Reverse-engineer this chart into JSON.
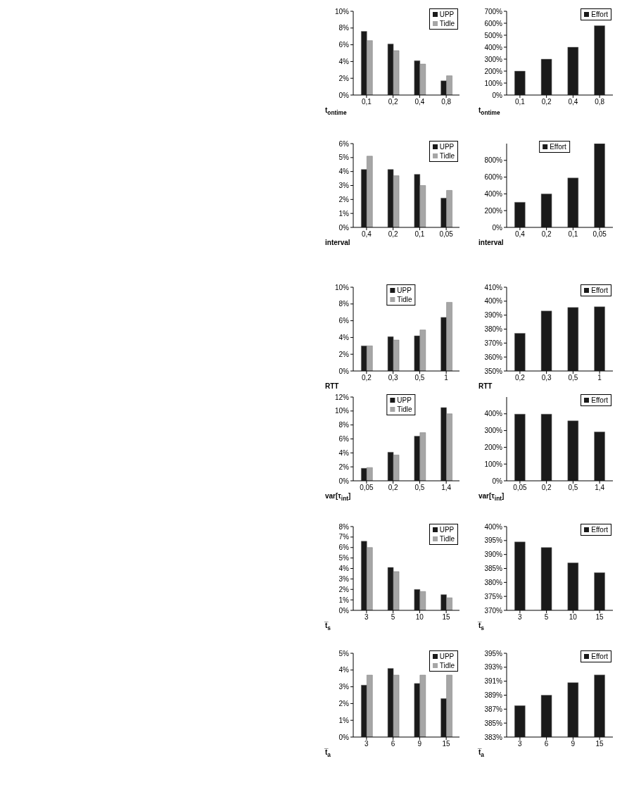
{
  "chart_data": [
    {
      "type": "bar",
      "categories": [
        "0,1",
        "0,2",
        "0,4",
        "0,8"
      ],
      "xlabel": "t$_{ontime}$",
      "legend": "top right",
      "ylim": [
        0,
        10
      ],
      "yticks": [
        {
          "value": 0,
          "label": "0%"
        },
        {
          "value": 2,
          "label": "2%"
        },
        {
          "value": 4,
          "label": "4%"
        },
        {
          "value": 6,
          "label": "6%"
        },
        {
          "value": 8,
          "label": "8%"
        },
        {
          "value": 10,
          "label": "10%"
        }
      ],
      "series": [
        {
          "name": "UPP",
          "color": "#1a1a1a",
          "values": [
            7.6,
            6.1,
            4.1,
            1.7
          ]
        },
        {
          "name": "Tidle",
          "color": "#a6a6a6",
          "values": [
            6.5,
            5.3,
            3.7,
            2.3
          ]
        }
      ]
    },
    {
      "type": "bar",
      "categories": [
        "0,1",
        "0,2",
        "0,4",
        "0,8"
      ],
      "xlabel": "t$_{ontime}$",
      "legend": "top right",
      "ylim": [
        0,
        700
      ],
      "yticks": [
        {
          "value": 0,
          "label": "0%"
        },
        {
          "value": 100,
          "label": "100%"
        },
        {
          "value": 200,
          "label": "200%"
        },
        {
          "value": 300,
          "label": "300%"
        },
        {
          "value": 400,
          "label": "400%"
        },
        {
          "value": 500,
          "label": "500%"
        },
        {
          "value": 600,
          "label": "600%"
        },
        {
          "value": 700,
          "label": "700%"
        }
      ],
      "series": [
        {
          "name": "Effort",
          "color": "#1a1a1a",
          "values": [
            200,
            300,
            400,
            580
          ]
        }
      ]
    },
    {
      "type": "bar",
      "categories": [
        "0,4",
        "0,2",
        "0,1",
        "0,05"
      ],
      "xlabel": "interval",
      "legend": "top right",
      "ylim": [
        0,
        6
      ],
      "yticks": [
        {
          "value": 0,
          "label": "0%"
        },
        {
          "value": 1,
          "label": "1%"
        },
        {
          "value": 2,
          "label": "2%"
        },
        {
          "value": 3,
          "label": "3%"
        },
        {
          "value": 4,
          "label": "4%"
        },
        {
          "value": 5,
          "label": "5%"
        },
        {
          "value": 6,
          "label": "6%"
        }
      ],
      "series": [
        {
          "name": "UPP",
          "color": "#1a1a1a",
          "values": [
            4.15,
            4.15,
            3.8,
            2.1
          ]
        },
        {
          "name": "Tidle",
          "color": "#a6a6a6",
          "values": [
            5.1,
            3.7,
            3.0,
            2.65
          ]
        }
      ]
    },
    {
      "type": "bar",
      "categories": [
        "0,4",
        "0,2",
        "0,1",
        "0,05"
      ],
      "xlabel": "interval",
      "legend": "top",
      "ylim": [
        0,
        1000
      ],
      "yticks": [
        {
          "value": 0,
          "label": "0%"
        },
        {
          "value": 200,
          "label": "200%"
        },
        {
          "value": 400,
          "label": "400%"
        },
        {
          "value": 600,
          "label": "600%"
        },
        {
          "value": 800,
          "label": "800%"
        }
      ],
      "series": [
        {
          "name": "Effort",
          "color": "#1a1a1a",
          "values": [
            300,
            400,
            590,
            1000
          ]
        }
      ]
    },
    {
      "type": "bar",
      "categories": [
        "0,2",
        "0,3",
        "0,5",
        "1"
      ],
      "xlabel": "RTT",
      "legend": "top",
      "ylim": [
        0,
        10
      ],
      "yticks": [
        {
          "value": 0,
          "label": "0%"
        },
        {
          "value": 2,
          "label": "2%"
        },
        {
          "value": 4,
          "label": "4%"
        },
        {
          "value": 6,
          "label": "6%"
        },
        {
          "value": 8,
          "label": "8%"
        },
        {
          "value": 10,
          "label": "10%"
        }
      ],
      "series": [
        {
          "name": "UPP",
          "color": "#1a1a1a",
          "values": [
            3.0,
            4.1,
            4.2,
            6.4
          ]
        },
        {
          "name": "Tidle",
          "color": "#a6a6a6",
          "values": [
            3.0,
            3.7,
            4.9,
            8.2
          ]
        }
      ]
    },
    {
      "type": "bar",
      "categories": [
        "0,2",
        "0,3",
        "0,5",
        "1"
      ],
      "xlabel": "RTT",
      "legend": "top right",
      "ylim": [
        350,
        410
      ],
      "yticks": [
        {
          "value": 350,
          "label": "350%"
        },
        {
          "value": 360,
          "label": "360%"
        },
        {
          "value": 370,
          "label": "370%"
        },
        {
          "value": 380,
          "label": "380%"
        },
        {
          "value": 390,
          "label": "390%"
        },
        {
          "value": 400,
          "label": "400%"
        },
        {
          "value": 410,
          "label": "410%"
        }
      ],
      "series": [
        {
          "name": "Effort",
          "color": "#1a1a1a",
          "values": [
            377,
            393,
            395.5,
            396
          ]
        }
      ]
    },
    {
      "type": "bar",
      "categories": [
        "0,05",
        "0,2",
        "0,5",
        "1,4"
      ],
      "xlabel": "var[τ$_{int}$]",
      "legend": "top",
      "ylim": [
        0,
        12
      ],
      "yticks": [
        {
          "value": 0,
          "label": "0%"
        },
        {
          "value": 2,
          "label": "2%"
        },
        {
          "value": 4,
          "label": "4%"
        },
        {
          "value": 6,
          "label": "6%"
        },
        {
          "value": 8,
          "label": "8%"
        },
        {
          "value": 10,
          "label": "10%"
        },
        {
          "value": 12,
          "label": "12%"
        }
      ],
      "series": [
        {
          "name": "UPP",
          "color": "#1a1a1a",
          "values": [
            1.8,
            4.1,
            6.4,
            10.5
          ]
        },
        {
          "name": "Tidle",
          "color": "#a6a6a6",
          "values": [
            1.9,
            3.7,
            6.9,
            9.6
          ]
        }
      ]
    },
    {
      "type": "bar",
      "categories": [
        "0,05",
        "0,2",
        "0,5",
        "1,4"
      ],
      "xlabel": "var[τ$_{int}$]",
      "legend": "top right",
      "ylim": [
        0,
        500
      ],
      "yticks": [
        {
          "value": 0,
          "label": "0%"
        },
        {
          "value": 100,
          "label": "100%"
        },
        {
          "value": 200,
          "label": "200%"
        },
        {
          "value": 300,
          "label": "300%"
        },
        {
          "value": 400,
          "label": "400%"
        }
      ],
      "series": [
        {
          "name": "Effort",
          "color": "#1a1a1a",
          "values": [
            398,
            398,
            358,
            292
          ]
        }
      ]
    },
    {
      "type": "bar",
      "categories": [
        "3",
        "5",
        "10",
        "15"
      ],
      "xlabel": "t̅$_{s}$",
      "legend": "top right",
      "ylim": [
        0,
        8
      ],
      "yticks": [
        {
          "value": 0,
          "label": "0%"
        },
        {
          "value": 1,
          "label": "1%"
        },
        {
          "value": 2,
          "label": "2%"
        },
        {
          "value": 3,
          "label": "3%"
        },
        {
          "value": 4,
          "label": "4%"
        },
        {
          "value": 5,
          "label": "5%"
        },
        {
          "value": 6,
          "label": "6%"
        },
        {
          "value": 7,
          "label": "7%"
        },
        {
          "value": 8,
          "label": "8%"
        }
      ],
      "series": [
        {
          "name": "UPP",
          "color": "#1a1a1a",
          "values": [
            6.6,
            4.1,
            2.0,
            1.5
          ]
        },
        {
          "name": "Tidle",
          "color": "#a6a6a6",
          "values": [
            6.0,
            3.7,
            1.8,
            1.2
          ]
        }
      ]
    },
    {
      "type": "bar",
      "categories": [
        "3",
        "5",
        "10",
        "15"
      ],
      "xlabel": "t̅$_{s}$",
      "legend": "top right",
      "ylim": [
        370,
        400
      ],
      "yticks": [
        {
          "value": 370,
          "label": "370%"
        },
        {
          "value": 375,
          "label": "375%"
        },
        {
          "value": 380,
          "label": "380%"
        },
        {
          "value": 385,
          "label": "385%"
        },
        {
          "value": 390,
          "label": "390%"
        },
        {
          "value": 395,
          "label": "395%"
        },
        {
          "value": 400,
          "label": "400%"
        }
      ],
      "series": [
        {
          "name": "Effort",
          "color": "#1a1a1a",
          "values": [
            394.5,
            392.5,
            387,
            383.5
          ]
        }
      ]
    },
    {
      "type": "bar",
      "categories": [
        "3",
        "6",
        "9",
        "15"
      ],
      "xlabel": "t̅$_{a}$",
      "legend": "top right",
      "ylim": [
        0,
        5
      ],
      "yticks": [
        {
          "value": 0,
          "label": "0%"
        },
        {
          "value": 1,
          "label": "1%"
        },
        {
          "value": 2,
          "label": "2%"
        },
        {
          "value": 3,
          "label": "3%"
        },
        {
          "value": 4,
          "label": "4%"
        },
        {
          "value": 5,
          "label": "5%"
        }
      ],
      "series": [
        {
          "name": "UPP",
          "color": "#1a1a1a",
          "values": [
            3.1,
            4.1,
            3.2,
            2.3
          ]
        },
        {
          "name": "Tidle",
          "color": "#a6a6a6",
          "values": [
            3.7,
            3.7,
            3.7,
            3.7
          ]
        }
      ]
    },
    {
      "type": "bar",
      "categories": [
        "3",
        "6",
        "9",
        "15"
      ],
      "xlabel": "t̅$_{a}$",
      "legend": "top right",
      "ylim": [
        383,
        395
      ],
      "yticks": [
        {
          "value": 383,
          "label": "383%"
        },
        {
          "value": 385,
          "label": "385%"
        },
        {
          "value": 387,
          "label": "387%"
        },
        {
          "value": 389,
          "label": "389%"
        },
        {
          "value": 391,
          "label": "391%"
        },
        {
          "value": 393,
          "label": "393%"
        },
        {
          "value": 395,
          "label": "395%"
        }
      ],
      "series": [
        {
          "name": "Effort",
          "color": "#1a1a1a",
          "values": [
            387.5,
            389,
            390.8,
            391.9
          ]
        }
      ]
    }
  ]
}
